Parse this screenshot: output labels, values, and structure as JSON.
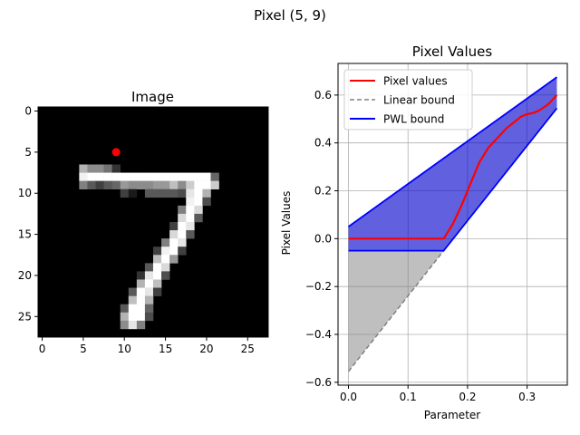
{
  "figure": {
    "suptitle": "Pixel (5, 9)"
  },
  "chart_data": [
    {
      "type": "heatmap",
      "title": "Image",
      "colormap": "gray",
      "shape": [
        28,
        28
      ],
      "x_ticks": [
        "0",
        "5",
        "10",
        "15",
        "20",
        "25"
      ],
      "y_ticks": [
        "0",
        "5",
        "10",
        "15",
        "20",
        "25"
      ],
      "marker": {
        "row": 5,
        "col": 9,
        "color": "#ff0000"
      },
      "pixel_values": [
        {
          "row": 7,
          "cols": [
            [
              5,
              0.7
            ],
            [
              6,
              0.55
            ],
            [
              7,
              0.55
            ],
            [
              8,
              0.45
            ],
            [
              9,
              0.2
            ]
          ]
        },
        {
          "row": 8,
          "cols": [
            [
              5,
              0.95
            ],
            [
              6,
              1
            ],
            [
              7,
              1
            ],
            [
              8,
              1
            ],
            [
              9,
              1
            ],
            [
              10,
              1
            ],
            [
              11,
              1
            ],
            [
              12,
              1
            ],
            [
              13,
              1
            ],
            [
              14,
              1
            ],
            [
              15,
              1
            ],
            [
              16,
              1
            ],
            [
              17,
              1
            ],
            [
              18,
              1
            ],
            [
              19,
              1
            ],
            [
              20,
              1
            ],
            [
              21,
              0.4
            ]
          ]
        },
        {
          "row": 9,
          "cols": [
            [
              5,
              0.5
            ],
            [
              6,
              0.35
            ],
            [
              7,
              0.25
            ],
            [
              8,
              0.35
            ],
            [
              9,
              0.4
            ],
            [
              10,
              0.6
            ],
            [
              11,
              0.55
            ],
            [
              12,
              0.55
            ],
            [
              13,
              0.55
            ],
            [
              14,
              0.6
            ],
            [
              15,
              0.6
            ],
            [
              16,
              0.75
            ],
            [
              17,
              0.55
            ],
            [
              18,
              0.8
            ],
            [
              19,
              1
            ],
            [
              20,
              1
            ],
            [
              21,
              0.8
            ]
          ]
        },
        {
          "row": 10,
          "cols": [
            [
              10,
              0.25
            ],
            [
              11,
              0.1
            ],
            [
              13,
              0.35
            ],
            [
              14,
              0.35
            ],
            [
              15,
              0.35
            ],
            [
              16,
              0.35
            ],
            [
              17,
              0.3
            ],
            [
              18,
              0.9
            ],
            [
              19,
              1
            ],
            [
              20,
              0.7
            ]
          ]
        },
        {
          "row": 11,
          "cols": [
            [
              18,
              0.95
            ],
            [
              19,
              1
            ],
            [
              20,
              0.3
            ]
          ]
        },
        {
          "row": 12,
          "cols": [
            [
              17,
              0.5
            ],
            [
              18,
              1
            ],
            [
              19,
              0.85
            ]
          ]
        },
        {
          "row": 13,
          "cols": [
            [
              17,
              0.85
            ],
            [
              18,
              1
            ],
            [
              19,
              0.35
            ]
          ]
        },
        {
          "row": 14,
          "cols": [
            [
              16,
              0.25
            ],
            [
              17,
              1
            ],
            [
              18,
              0.9
            ]
          ]
        },
        {
          "row": 15,
          "cols": [
            [
              16,
              0.85
            ],
            [
              17,
              1
            ],
            [
              18,
              0.35
            ]
          ]
        },
        {
          "row": 16,
          "cols": [
            [
              15,
              0.5
            ],
            [
              16,
              1
            ],
            [
              17,
              0.9
            ]
          ]
        },
        {
          "row": 17,
          "cols": [
            [
              14,
              0.25
            ],
            [
              15,
              0.95
            ],
            [
              16,
              1
            ],
            [
              17,
              0.25
            ]
          ]
        },
        {
          "row": 18,
          "cols": [
            [
              14,
              0.75
            ],
            [
              15,
              1
            ],
            [
              16,
              0.6
            ]
          ]
        },
        {
          "row": 19,
          "cols": [
            [
              13,
              0.35
            ],
            [
              14,
              1
            ],
            [
              15,
              0.85
            ]
          ]
        },
        {
          "row": 20,
          "cols": [
            [
              12,
              0.2
            ],
            [
              13,
              0.9
            ],
            [
              14,
              1
            ],
            [
              15,
              0.3
            ]
          ]
        },
        {
          "row": 21,
          "cols": [
            [
              12,
              0.7
            ],
            [
              13,
              1
            ],
            [
              14,
              0.75
            ]
          ]
        },
        {
          "row": 22,
          "cols": [
            [
              11,
              0.35
            ],
            [
              12,
              1
            ],
            [
              13,
              0.9
            ],
            [
              14,
              0.25
            ]
          ]
        },
        {
          "row": 23,
          "cols": [
            [
              11,
              0.75
            ],
            [
              12,
              1
            ],
            [
              13,
              0.7
            ]
          ]
        },
        {
          "row": 24,
          "cols": [
            [
              10,
              0.35
            ],
            [
              11,
              1
            ],
            [
              12,
              1
            ],
            [
              13,
              0.4
            ]
          ]
        },
        {
          "row": 25,
          "cols": [
            [
              10,
              0.7
            ],
            [
              11,
              1
            ],
            [
              12,
              1
            ],
            [
              13,
              0.3
            ]
          ]
        },
        {
          "row": 26,
          "cols": [
            [
              10,
              0.55
            ],
            [
              11,
              0.9
            ],
            [
              12,
              0.5
            ]
          ]
        }
      ]
    },
    {
      "type": "line",
      "title": "Pixel Values",
      "xlabel": "Parameter",
      "ylabel": "Pixel Values",
      "xlim": [
        -0.0175,
        0.3675
      ],
      "ylim": [
        -0.612,
        0.732
      ],
      "x_ticks": [
        0.0,
        0.1,
        0.2,
        0.3
      ],
      "x_tick_labels": [
        "0.0",
        "0.1",
        "0.2",
        "0.3"
      ],
      "y_ticks": [
        -0.6,
        -0.4,
        -0.2,
        0.0,
        0.2,
        0.4,
        0.6
      ],
      "y_tick_labels": [
        "−0.6",
        "−0.4",
        "−0.2",
        "0.0",
        "0.2",
        "0.4",
        "0.6"
      ],
      "grid": true,
      "legend_position": "top-left",
      "legend": [
        "Pixel values",
        "Linear bound",
        "PWL bound"
      ],
      "series": [
        {
          "name": "Pixel values",
          "color": "#ff0000",
          "style": "solid",
          "points": [
            [
              0.0,
              0.0
            ],
            [
              0.16,
              0.0
            ],
            [
              0.175,
              0.06
            ],
            [
              0.19,
              0.14
            ],
            [
              0.205,
              0.23
            ],
            [
              0.22,
              0.32
            ],
            [
              0.235,
              0.38
            ],
            [
              0.25,
              0.42
            ],
            [
              0.265,
              0.46
            ],
            [
              0.28,
              0.49
            ],
            [
              0.29,
              0.51
            ],
            [
              0.3,
              0.52
            ],
            [
              0.31,
              0.525
            ],
            [
              0.32,
              0.535
            ],
            [
              0.335,
              0.56
            ],
            [
              0.35,
              0.6
            ]
          ]
        },
        {
          "name": "Linear bound",
          "color": "#808080",
          "style": "dashed",
          "points": [
            [
              0.0,
              -0.555
            ],
            [
              0.16,
              -0.05
            ]
          ]
        },
        {
          "name": "PWL bound",
          "color": "#0000ff",
          "style": "solid",
          "upper": [
            [
              0.0,
              0.05
            ],
            [
              0.35,
              0.675
            ]
          ],
          "lower": [
            [
              0.0,
              -0.05
            ],
            [
              0.16,
              -0.05
            ],
            [
              0.35,
              0.545
            ]
          ]
        }
      ]
    }
  ]
}
